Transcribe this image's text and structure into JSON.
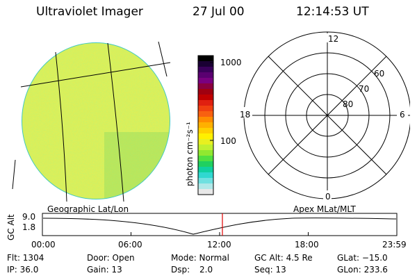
{
  "header": {
    "title": "Ultraviolet Imager",
    "date": "27 Jul 00",
    "time": "12:14:53 UT"
  },
  "colorbar": {
    "unit_label": "photon cm⁻²s⁻¹",
    "tick_labels": [
      "1000",
      "100"
    ],
    "colors": [
      "#000000",
      "#1a0033",
      "#3a005a",
      "#5a0070",
      "#7a0080",
      "#8a0040",
      "#a00010",
      "#c00000",
      "#e02010",
      "#f04010",
      "#f86010",
      "#ff8c00",
      "#ffb000",
      "#ffd000",
      "#fff000",
      "#e8f020",
      "#c0f030",
      "#90e830",
      "#50e040",
      "#20d060",
      "#10d0a0",
      "#30d8d0",
      "#70e0e0",
      "#b0e8e8",
      "#e8e8e8"
    ]
  },
  "polar": {
    "mlt_labels": [
      "12",
      "18",
      "6",
      "0"
    ],
    "lat_labels": [
      "60",
      "70",
      "80"
    ]
  },
  "timeline": {
    "left_label": "Geographic Lat/Lon",
    "right_label": "Apex MLat/MLT",
    "axis_title": "GC Alt",
    "y_labels": [
      "9.0",
      "1.8"
    ],
    "time_ticks": [
      "00:00",
      "06:00",
      "12:00",
      "18:00",
      "23:59"
    ],
    "marker_time": "12:14:53",
    "marker_color": "#e00000"
  },
  "info": {
    "flt": "Flt: 1304",
    "ip": "IP: 36.0",
    "door": "Door: Open",
    "gain": "Gain: 13",
    "mode": "Mode: Normal",
    "dsp_label": "Dsp:",
    "dsp_value": "2.0",
    "gcalt": "GC Alt: 4.5 Re",
    "seq": "Seq: 13",
    "glat": "GLat: −15.0",
    "glon": "GLon: 233.6"
  },
  "colors": {
    "image_fill": "#c8e840",
    "disk_edge": "#30c8c0"
  }
}
